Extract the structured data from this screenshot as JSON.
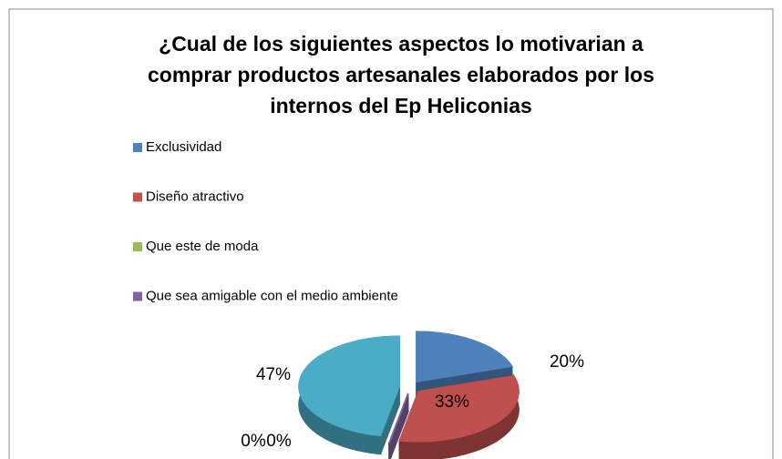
{
  "chart_data": {
    "type": "pie",
    "title": "¿Cual de los siguientes aspectos lo motivarian a comprar productos artesanales elaborados por los internos del Ep Heliconias",
    "categories": [
      "Exclusividad",
      "Diseño atractivo",
      "Que este de moda",
      "Que sea amigable con el medio ambiente",
      null
    ],
    "values": [
      20,
      33,
      0,
      0,
      47
    ],
    "value_labels": [
      "20%",
      "33%",
      "0%",
      "0%",
      "47%"
    ],
    "colors": [
      "#4f81bd",
      "#c0504d",
      "#9bbb59",
      "#8064a2",
      "#4bacc6"
    ],
    "legend": "top-left"
  }
}
